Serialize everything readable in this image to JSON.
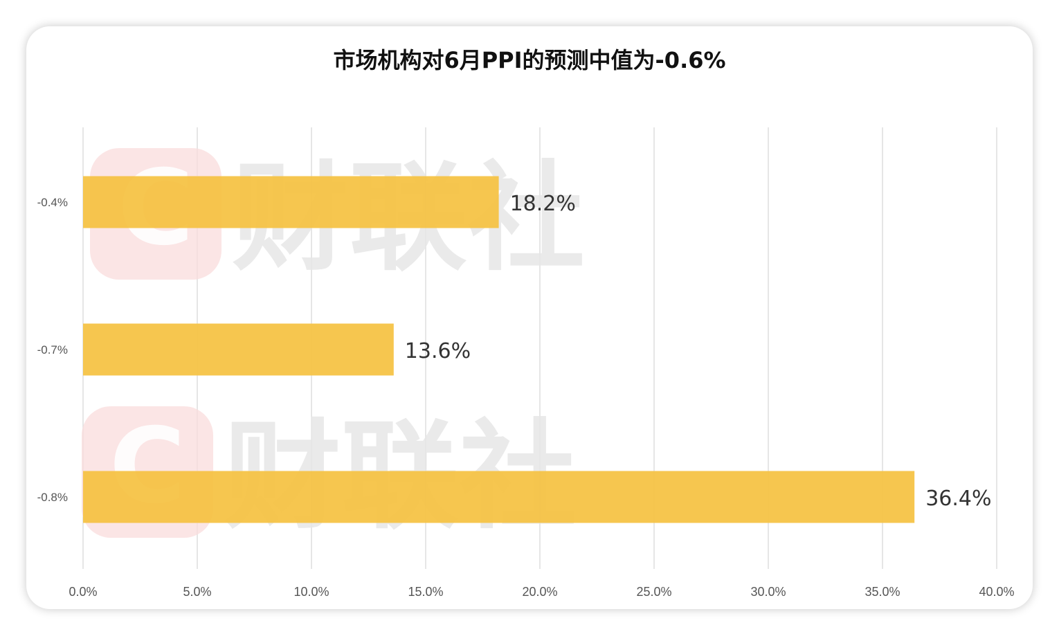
{
  "chart_data": {
    "type": "bar",
    "orientation": "horizontal",
    "title": "市场机构对6月PPI的预测中值为-0.6%",
    "categories": [
      "-0.4%",
      "-0.7%",
      "-0.8%"
    ],
    "values": [
      18.2,
      13.6,
      36.4
    ],
    "value_labels": [
      "18.2%",
      "13.6%",
      "36.4%"
    ],
    "x_ticks": [
      "0.0%",
      "5.0%",
      "10.0%",
      "15.0%",
      "20.0%",
      "25.0%",
      "30.0%",
      "35.0%",
      "40.0%"
    ],
    "xlim": [
      0,
      40
    ],
    "xlabel": "",
    "ylabel": "",
    "grid": "vertical",
    "legend": "none",
    "bar_color": "#F5C242"
  },
  "watermark": {
    "text": "财联社",
    "logo_letter": "C"
  }
}
